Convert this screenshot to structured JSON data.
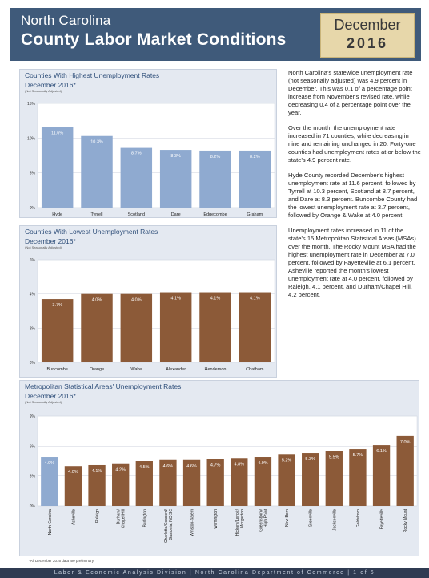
{
  "header": {
    "title_line1": "North Carolina",
    "title_line2": "County Labor Market Conditions",
    "month": "December",
    "year": "2016"
  },
  "colors": {
    "header_bg": "#3f5a7a",
    "date_box_bg": "#e7d7aa",
    "panel_bg": "#e4e9f1",
    "bar_blue": "#8faad0",
    "bar_brown": "#8c5a38",
    "footer_bg": "#2f3b52"
  },
  "text_paragraphs": [
    "North Carolina's statewide unemployment rate (not seasonally adjusted) was 4.9 percent in December. This was 0.1 of a percentage point increase from November's revised rate, while decreasing 0.4 of a percentage point over the year.",
    "Over the month, the unemployment rate increased in 71 counties, while decreasing in nine and remaining unchanged in 20. Forty-one counties had unemployment rates at or below the state's 4.9 percent rate.",
    "Hyde County recorded December's highest unemployment rate at 11.6 percent, followed by Tyrrell at 10.3 percent, Scotland at 8.7 percent, and Dare at 8.3 percent. Buncombe County had the lowest unemployment rate at 3.7 percent, followed by Orange & Wake at 4.0 percent.",
    "Unemployment rates increased in 11 of the state's 15 Metropolitan Statistical Areas (MSAs) over the month. The Rocky Mount MSA had the highest unemployment rate in December at 7.0 percent, followed by Fayetteville at 6.1 percent. Asheville reported the month's lowest unemployment rate at 4.0 percent, followed by Raleigh, 4.1 percent, and Durham/Chapel Hill, 4.2 percent."
  ],
  "chart_data": [
    {
      "type": "bar",
      "title": "Counties With Highest Unemployment Rates",
      "subtitle": "December 2016*",
      "note": "(Not Seasonally Adjusted)",
      "categories": [
        "Hyde",
        "Tyrrell",
        "Scotland",
        "Dare",
        "Edgecombe",
        "Graham"
      ],
      "values": [
        11.6,
        10.3,
        8.7,
        8.3,
        8.2,
        8.2
      ],
      "value_labels": [
        "11.6%",
        "10.3%",
        "8.7%",
        "8.3%",
        "8.2%",
        "8.2%"
      ],
      "yticks": [
        "0%",
        "5%",
        "10%",
        "15%"
      ],
      "ylim": [
        0,
        15
      ],
      "color": "#8faad0",
      "grid": true
    },
    {
      "type": "bar",
      "title": "Counties With Lowest Unemployment Rates",
      "subtitle": "December 2016*",
      "note": "(Not Seasonally Adjusted)",
      "categories": [
        "Buncombe",
        "Orange",
        "Wake",
        "Alexander",
        "Henderson",
        "Chatham"
      ],
      "values": [
        3.7,
        4.0,
        4.0,
        4.1,
        4.1,
        4.1
      ],
      "value_labels": [
        "3.7%",
        "4.0%",
        "4.0%",
        "4.1%",
        "4.1%",
        "4.1%"
      ],
      "yticks": [
        "0%",
        "2%",
        "4%",
        "6%"
      ],
      "ylim": [
        0,
        6
      ],
      "color": "#8c5a38",
      "grid": true
    },
    {
      "type": "bar",
      "title": "Metropolitan Statistical Areas' Unemployment Rates",
      "subtitle": "December 2016*",
      "note": "(Not Seasonally Adjusted)",
      "categories": [
        "North Carolina",
        "Asheville",
        "Raleigh",
        "Durham/ Chapel Hill",
        "Burlington",
        "Charlotte/Concord/ Gastonia, NC-SC",
        "Winston-Salem",
        "Wilmington",
        "Hickory/Lenoir/ Morganton",
        "Greensboro/ High Point",
        "New Bern",
        "Greenville",
        "Jacksonville",
        "Goldsboro",
        "Fayetteville",
        "Rocky Mount"
      ],
      "values": [
        4.9,
        4.0,
        4.1,
        4.2,
        4.5,
        4.6,
        4.6,
        4.7,
        4.8,
        4.9,
        5.2,
        5.3,
        5.5,
        5.7,
        6.1,
        7.0
      ],
      "value_labels": [
        "4.9%",
        "4.0%",
        "4.1%",
        "4.2%",
        "4.5%",
        "4.6%",
        "4.6%",
        "4.7%",
        "4.8%",
        "4.9%",
        "5.2%",
        "5.3%",
        "5.5%",
        "5.7%",
        "6.1%",
        "7.0%"
      ],
      "highlight_index": 0,
      "yticks": [
        "0%",
        "3%",
        "6%",
        "9%"
      ],
      "ylim": [
        0,
        9
      ],
      "color": "#8c5a38",
      "highlight_color": "#8faad0",
      "grid": true
    }
  ],
  "footnote": "*All December 2016 data are preliminary.",
  "footer": "Labor & Economic Analysis Division | North Carolina Department of Commerce | 1 of 6"
}
